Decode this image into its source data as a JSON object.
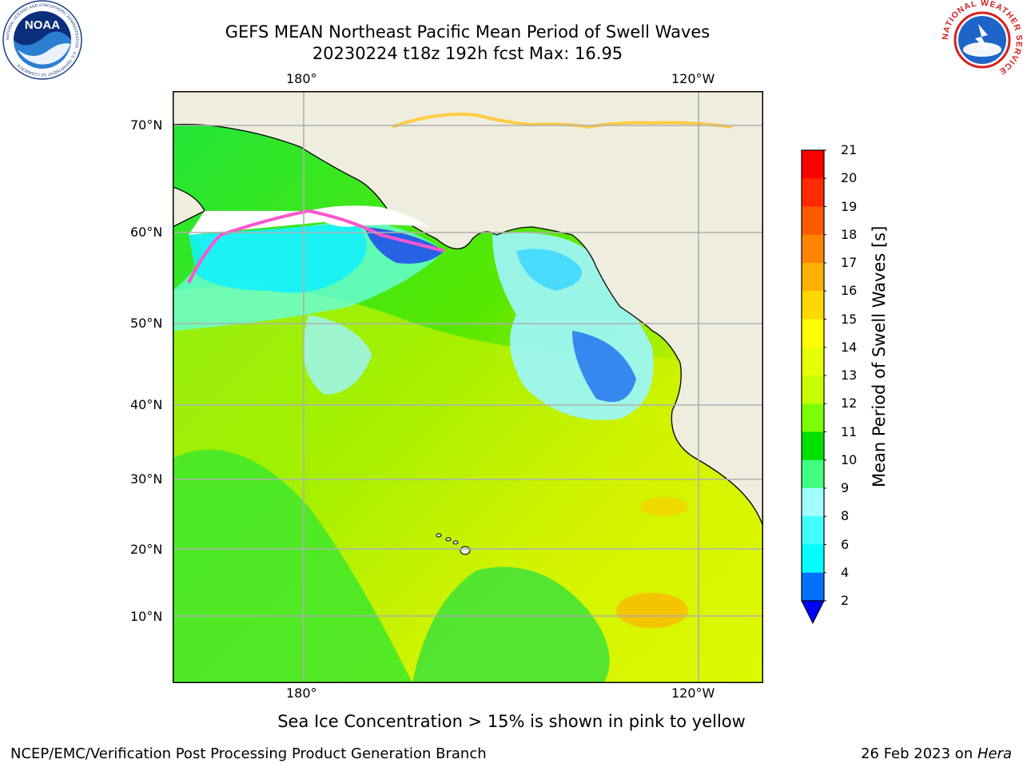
{
  "header": {
    "title_line1": "GEFS MEAN Northeast Pacific Mean Period of Swell Waves",
    "title_line2": "20230224 t18z 192h fcst   Max: 16.95"
  },
  "logos": {
    "left": "NOAA",
    "left_ring": "NATIONAL OCEANIC AND ATMOSPHERIC ADMINISTRATION · U.S. DEPARTMENT OF COMMERCE",
    "right_ring": "NATIONAL WEATHER SERVICE"
  },
  "map": {
    "lon_top": [
      "180°",
      "120°W"
    ],
    "lon_bottom": [
      "180°",
      "120°W"
    ],
    "lat_labels": [
      "70°N",
      "60°N",
      "50°N",
      "40°N",
      "30°N",
      "20°N",
      "10°N"
    ],
    "colors": {
      "land": "#efedde",
      "coast": "#000000",
      "grid": "#b0b0b0",
      "ice": "#ff66cc"
    }
  },
  "colorbar": {
    "label": "Mean Period of Swell Waves [s]",
    "ticks": [
      "21",
      "20",
      "19",
      "18",
      "17",
      "16",
      "15",
      "14",
      "13",
      "12",
      "11",
      "10",
      "9",
      "8",
      "6",
      "4",
      "2"
    ],
    "colors": [
      "#ff0000",
      "#ff2a00",
      "#ff5a00",
      "#ff8400",
      "#ffb000",
      "#ffd800",
      "#ffff00",
      "#e8ff00",
      "#c8ff00",
      "#7cff00",
      "#00e000",
      "#40ff80",
      "#a0ffff",
      "#40ffff",
      "#00ffff",
      "#0070ff"
    ],
    "under_color": "#0000ff"
  },
  "notes": {
    "ice_caption": "Sea Ice Concentration > 15% is shown in pink to yellow",
    "credit": "NCEP/EMC/Verification Post Processing Product Generation Branch",
    "date": "26 Feb 2023 on ",
    "machine": "Hera"
  }
}
